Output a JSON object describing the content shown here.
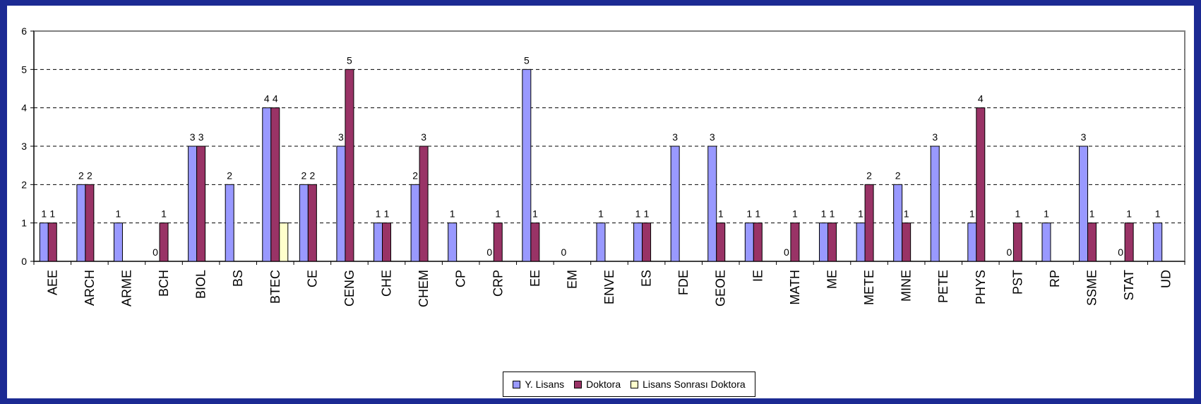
{
  "chart_data": {
    "type": "bar",
    "categories": [
      "AEE",
      "ARCH",
      "ARME",
      "BCH",
      "BIOL",
      "BS",
      "BTEC",
      "CE",
      "CENG",
      "CHE",
      "CHEM",
      "CP",
      "CRP",
      "EE",
      "EM",
      "ENVE",
      "ES",
      "FDE",
      "GEOE",
      "IE",
      "MATH",
      "ME",
      "METE",
      "MINE",
      "PETE",
      "PHYS",
      "PST",
      "RP",
      "SSME",
      "STAT",
      "UD"
    ],
    "series": [
      {
        "name": "Y. Lisans",
        "color": "#9999ff",
        "values": [
          1,
          2,
          1,
          0,
          3,
          2,
          4,
          2,
          3,
          1,
          2,
          1,
          0,
          5,
          0,
          1,
          1,
          3,
          3,
          1,
          0,
          1,
          1,
          2,
          3,
          1,
          0,
          1,
          3,
          0,
          1
        ],
        "labels": [
          "1",
          "2",
          "1",
          "0",
          "3",
          "2",
          "4",
          "2",
          "3",
          "1",
          "2",
          "1",
          "0",
          "5",
          "0",
          "1",
          "1",
          "3",
          "3",
          "1",
          "0",
          "1",
          "1",
          "2",
          "3",
          "1",
          "0",
          "1",
          "3",
          "0",
          "1"
        ]
      },
      {
        "name": "Doktora",
        "color": "#993366",
        "values": [
          1,
          2,
          null,
          1,
          3,
          null,
          4,
          2,
          5,
          1,
          3,
          null,
          1,
          1,
          null,
          null,
          1,
          null,
          1,
          1,
          1,
          1,
          2,
          1,
          null,
          4,
          1,
          null,
          1,
          1,
          null
        ],
        "labels": [
          "1",
          "2",
          "",
          "1",
          "3",
          "",
          "4",
          "2",
          "5",
          "1",
          "3",
          "",
          "1",
          "1",
          "",
          "",
          "1",
          "",
          "1",
          "1",
          "1",
          "1",
          "2",
          "1",
          "",
          "4",
          "1",
          "",
          "1",
          "1",
          ""
        ]
      },
      {
        "name": "Lisans Sonrası Doktora",
        "color": "#ffffcc",
        "values": [
          null,
          null,
          null,
          null,
          null,
          null,
          1,
          null,
          null,
          null,
          null,
          null,
          null,
          null,
          null,
          null,
          null,
          null,
          null,
          null,
          null,
          null,
          null,
          null,
          null,
          null,
          null,
          null,
          null,
          null,
          null
        ],
        "labels": [
          "",
          "",
          "",
          "",
          "",
          "",
          "",
          "",
          "",
          "",
          "",
          "",
          "",
          "",
          "",
          "",
          "",
          "",
          "",
          "",
          "",
          "",
          "",
          "",
          "",
          "",
          "",
          "",
          "",
          "",
          ""
        ]
      }
    ],
    "yticks": [
      0,
      1,
      2,
      3,
      4,
      5,
      6
    ],
    "ylim": [
      0,
      6
    ],
    "grid": "dashed horizontal",
    "legend_position": "bottom"
  }
}
